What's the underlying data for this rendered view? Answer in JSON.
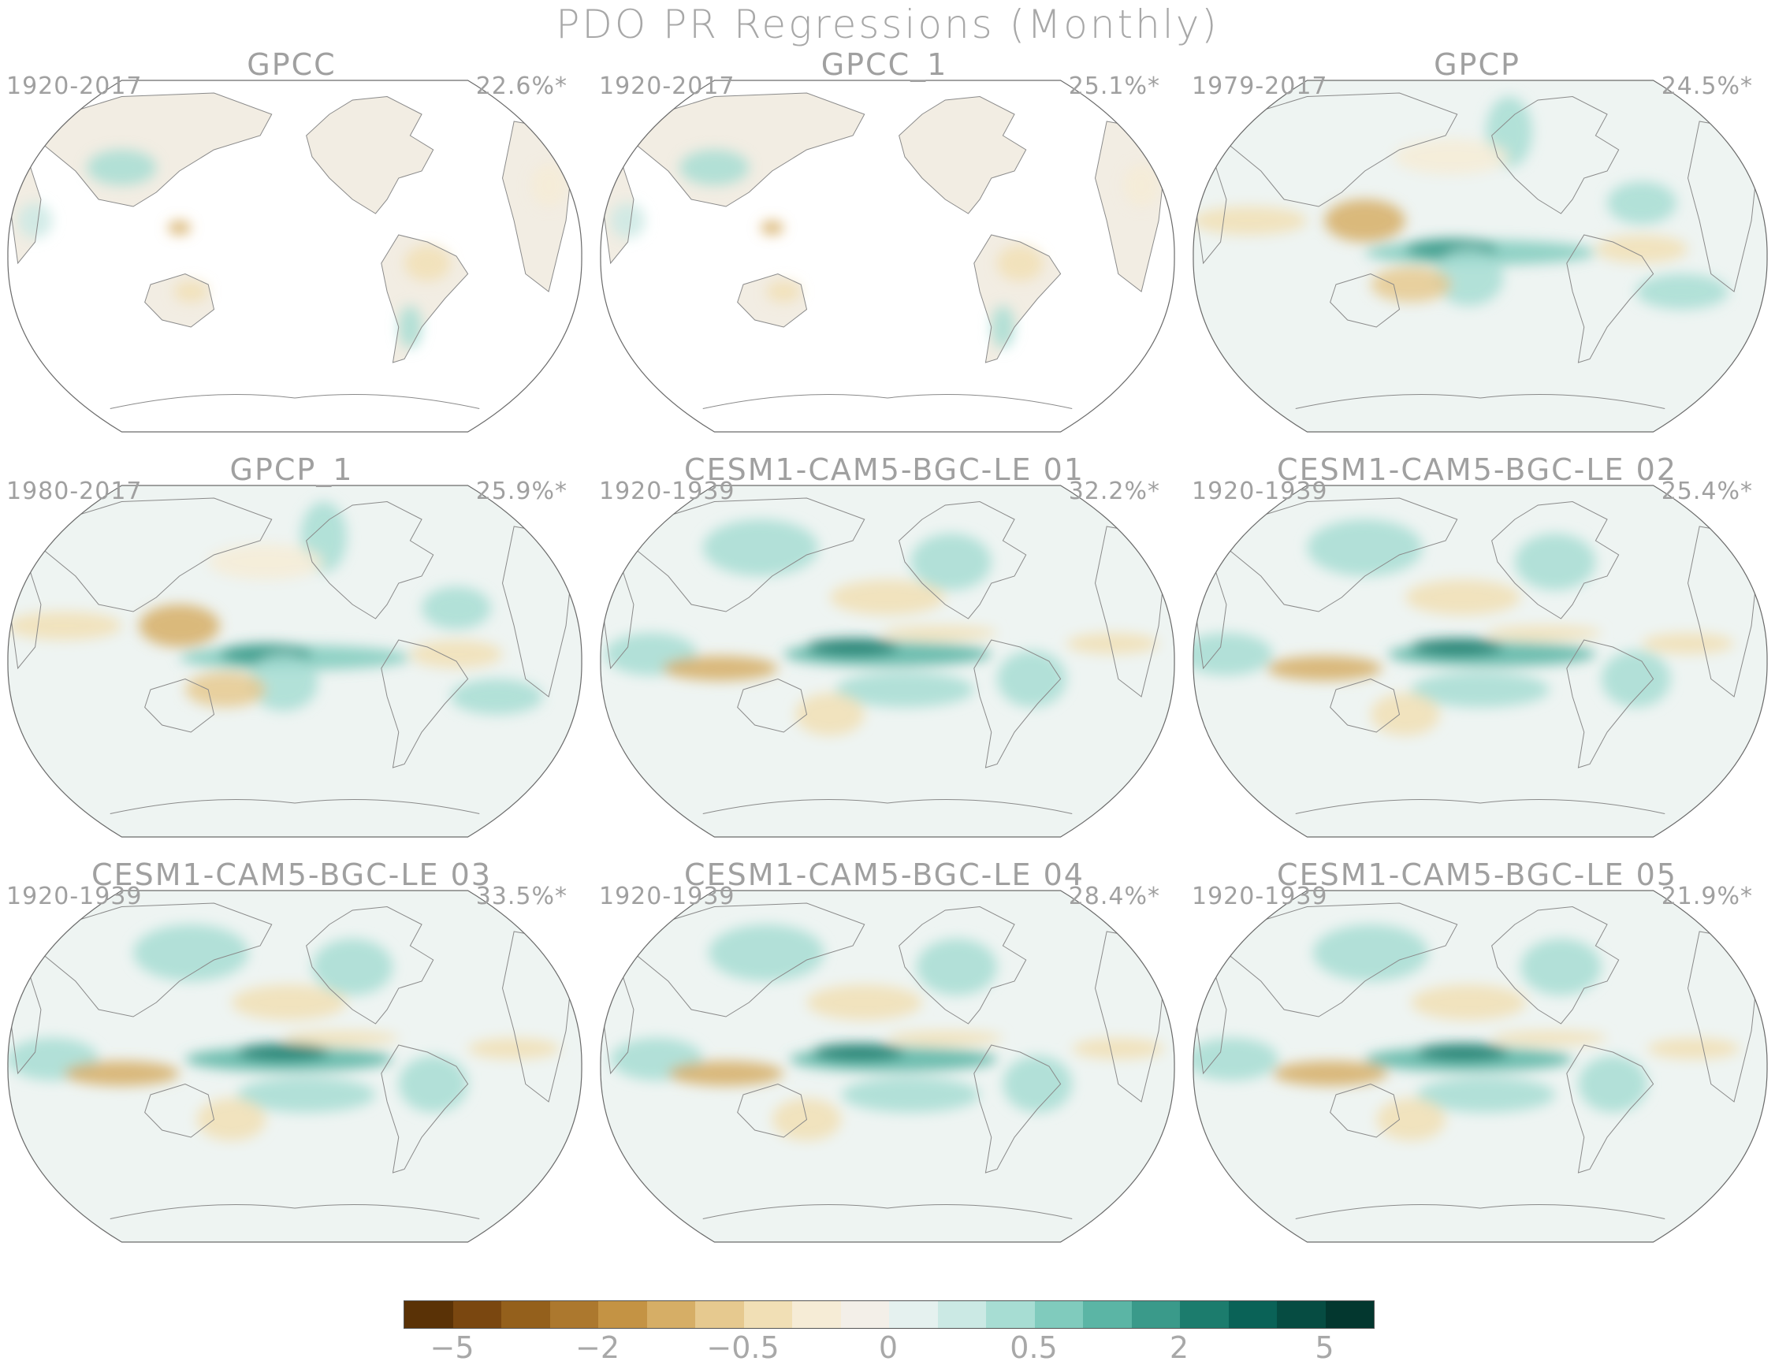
{
  "title": "PDO PR Regressions (Monthly)",
  "panels": [
    {
      "title": "GPCC",
      "period": "1920-2017",
      "variance": "22.6%*",
      "type": "land"
    },
    {
      "title": "GPCC_1",
      "period": "1920-2017",
      "variance": "25.1%*",
      "type": "land"
    },
    {
      "title": "GPCP",
      "period": "1979-2017",
      "variance": "24.5%*",
      "type": "obs"
    },
    {
      "title": "GPCP_1",
      "period": "1980-2017",
      "variance": "25.9%*",
      "type": "obs"
    },
    {
      "title": "CESM1-CAM5-BGC-LE 01",
      "period": "1920-1939",
      "variance": "32.2%*",
      "type": "model"
    },
    {
      "title": "CESM1-CAM5-BGC-LE 02",
      "period": "1920-1939",
      "variance": "25.4%*",
      "type": "model"
    },
    {
      "title": "CESM1-CAM5-BGC-LE 03",
      "period": "1920-1939",
      "variance": "33.5%*",
      "type": "model"
    },
    {
      "title": "CESM1-CAM5-BGC-LE 04",
      "period": "1920-1939",
      "variance": "28.4%*",
      "type": "model"
    },
    {
      "title": "CESM1-CAM5-BGC-LE 05",
      "period": "1920-1939",
      "variance": "21.9%*",
      "type": "model"
    }
  ],
  "colorbar": {
    "colors": [
      "#5a3206",
      "#7a4710",
      "#94601c",
      "#ac782e",
      "#c49344",
      "#d6ae66",
      "#e6c98f",
      "#f1dfb5",
      "#f6ecd6",
      "#f3efe8",
      "#e5f1ef",
      "#cbe9e4",
      "#a7ddd3",
      "#80cbbd",
      "#5bb5a5",
      "#3a9a8a",
      "#1c7c6d",
      "#0a6257",
      "#064c42",
      "#03372f"
    ],
    "labels": [
      {
        "text": "−5",
        "index": 1
      },
      {
        "text": "−2",
        "index": 4
      },
      {
        "text": "−0.5",
        "index": 7
      },
      {
        "text": "0",
        "index": 10
      },
      {
        "text": "0.5",
        "index": 13
      },
      {
        "text": "2",
        "index": 16
      },
      {
        "text": "5",
        "index": 19
      }
    ]
  }
}
